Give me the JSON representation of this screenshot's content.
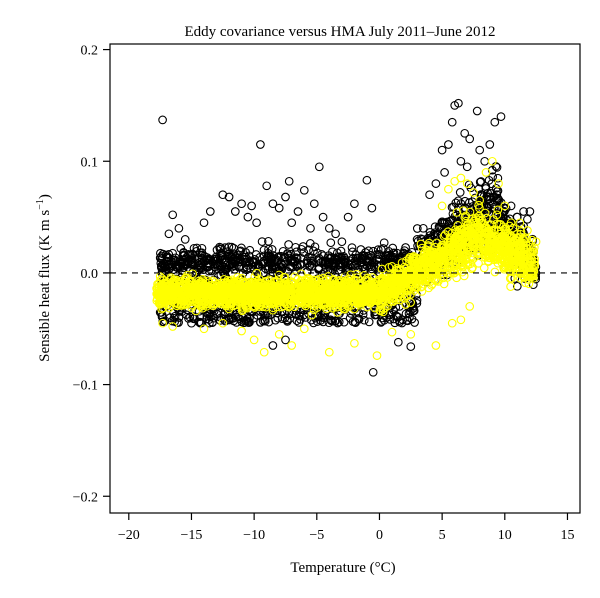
{
  "chart_data": {
    "type": "scatter",
    "title": "Eddy covariance versus HMA July 2011–June 2012",
    "xlabel": "Temperature (°C)",
    "ylabel_main": "Sensible heat flux (K m s",
    "ylabel_sup": "−1",
    "ylabel_close": ")",
    "xlim": [
      -21.5,
      16
    ],
    "ylim": [
      -0.215,
      0.205
    ],
    "x_ticks": [
      -20,
      -15,
      -10,
      -5,
      0,
      5,
      10,
      15
    ],
    "x_tick_labels": [
      "−20",
      "−15",
      "−10",
      "−5",
      "0",
      "5",
      "10",
      "15"
    ],
    "y_ticks": [
      -0.2,
      -0.1,
      0.0,
      0.1,
      0.2
    ],
    "y_tick_labels": [
      "−0.2",
      "−0.1",
      "0.0",
      "0.1",
      "0.2"
    ],
    "reference_line": {
      "y": 0.0,
      "style": "dashed",
      "color": "#000000"
    },
    "grid": false,
    "legend": "none",
    "series": [
      {
        "color": "#000000",
        "marker": "open-circle",
        "values": [
          [
            -17.3,
            0.137
          ],
          [
            -9.5,
            0.115
          ],
          [
            -16.5,
            0.052
          ],
          [
            -16.8,
            0.035
          ],
          [
            -16.0,
            0.04
          ],
          [
            -15.5,
            0.03
          ],
          [
            -14.8,
            0.022
          ],
          [
            -14.0,
            0.045
          ],
          [
            -13.5,
            0.055
          ],
          [
            -12.5,
            0.07
          ],
          [
            -12.0,
            0.068
          ],
          [
            -11.5,
            0.055
          ],
          [
            -11.0,
            0.062
          ],
          [
            -10.5,
            0.05
          ],
          [
            -10.2,
            0.06
          ],
          [
            -9.8,
            0.045
          ],
          [
            -9.0,
            0.078
          ],
          [
            -8.5,
            0.062
          ],
          [
            -8.0,
            0.058
          ],
          [
            -7.5,
            0.068
          ],
          [
            -7.2,
            0.082
          ],
          [
            -7.0,
            0.045
          ],
          [
            -6.5,
            0.055
          ],
          [
            -6.0,
            0.074
          ],
          [
            -5.5,
            0.04
          ],
          [
            -5.2,
            0.062
          ],
          [
            -4.8,
            0.095
          ],
          [
            -4.5,
            0.05
          ],
          [
            -4.0,
            0.04
          ],
          [
            -3.5,
            0.035
          ],
          [
            -3.0,
            0.028
          ],
          [
            -2.5,
            0.05
          ],
          [
            -2.0,
            0.062
          ],
          [
            -1.5,
            0.04
          ],
          [
            -1.0,
            0.083
          ],
          [
            -0.6,
            0.058
          ],
          [
            -0.5,
            -0.089
          ],
          [
            -17.0,
            -0.03
          ],
          [
            -16.0,
            -0.04
          ],
          [
            -15.0,
            -0.045
          ],
          [
            -8.5,
            -0.065
          ],
          [
            -7.5,
            -0.06
          ],
          [
            1.5,
            -0.062
          ],
          [
            2.5,
            -0.066
          ],
          [
            4.0,
            0.07
          ],
          [
            4.5,
            0.08
          ],
          [
            5.0,
            0.11
          ],
          [
            5.5,
            0.115
          ],
          [
            5.8,
            0.135
          ],
          [
            6.0,
            0.15
          ],
          [
            6.3,
            0.152
          ],
          [
            6.8,
            0.125
          ],
          [
            7.2,
            0.12
          ],
          [
            7.8,
            0.145
          ],
          [
            8.0,
            0.11
          ],
          [
            8.4,
            0.1
          ],
          [
            8.8,
            0.115
          ],
          [
            9.2,
            0.135
          ],
          [
            9.7,
            0.14
          ],
          [
            6.5,
            0.1
          ],
          [
            5.2,
            0.09
          ],
          [
            7.0,
            0.095
          ],
          [
            9.0,
            0.092
          ],
          [
            10.5,
            0.06
          ],
          [
            11.0,
            0.05
          ],
          [
            11.5,
            0.055
          ],
          [
            12.0,
            0.055
          ],
          [
            11.5,
            0.042
          ],
          [
            11.8,
            0.048
          ],
          [
            11.2,
            0.01
          ],
          [
            11.6,
            -0.005
          ],
          [
            11.0,
            -0.012
          ],
          [
            10.8,
            -0.005
          ],
          [
            3.0,
            0.03
          ],
          [
            3.5,
            0.04
          ],
          [
            2.0,
            0.02
          ],
          [
            1.0,
            0.01
          ],
          [
            0.5,
            0.008
          ],
          [
            -0.2,
            0.012
          ]
        ]
      },
      {
        "color": "#ffff00",
        "marker": "open-circle",
        "values": [
          [
            -17.3,
            -0.045
          ],
          [
            -16.5,
            -0.048
          ],
          [
            -14.0,
            -0.05
          ],
          [
            -12.5,
            -0.045
          ],
          [
            -11.0,
            -0.052
          ],
          [
            -10.0,
            -0.06
          ],
          [
            -9.2,
            -0.071
          ],
          [
            -8.0,
            -0.055
          ],
          [
            -7.0,
            -0.065
          ],
          [
            -6.0,
            -0.05
          ],
          [
            -4.0,
            -0.071
          ],
          [
            -2.0,
            -0.063
          ],
          [
            -0.2,
            -0.074
          ],
          [
            1.0,
            -0.053
          ],
          [
            2.5,
            -0.055
          ],
          [
            4.5,
            -0.065
          ],
          [
            5.8,
            -0.045
          ],
          [
            6.5,
            -0.042
          ],
          [
            7.2,
            -0.03
          ],
          [
            5.0,
            0.06
          ],
          [
            5.5,
            0.075
          ],
          [
            6.0,
            0.082
          ],
          [
            6.5,
            0.085
          ],
          [
            7.0,
            0.08
          ],
          [
            7.5,
            0.072
          ],
          [
            8.0,
            0.065
          ],
          [
            8.5,
            0.09
          ],
          [
            9.0,
            0.1
          ],
          [
            9.5,
            0.08
          ],
          [
            10.0,
            0.06
          ],
          [
            10.5,
            0.045
          ],
          [
            11.0,
            0.035
          ],
          [
            11.5,
            0.03
          ],
          [
            12.0,
            0.025
          ],
          [
            11.8,
            0.038
          ],
          [
            12.5,
            0.028
          ]
        ]
      }
    ]
  }
}
